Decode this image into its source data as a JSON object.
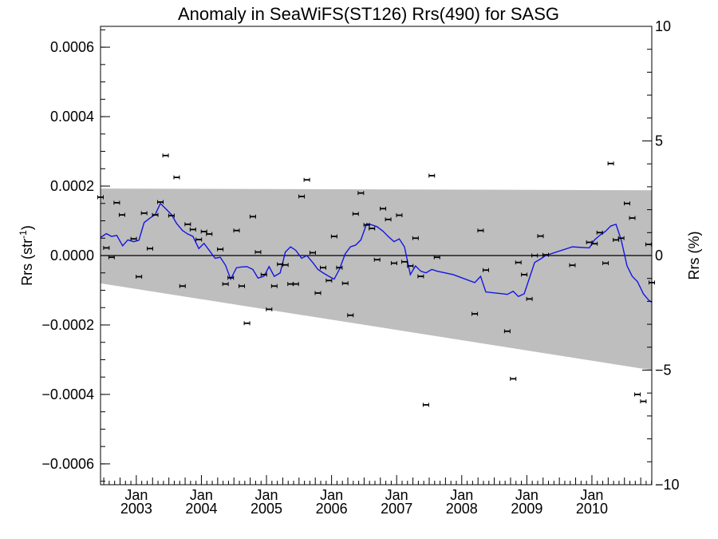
{
  "chart_data": {
    "type": "scatter",
    "title": "Anomaly in SeaWiFS(ST126) Rrs(490) for SASG",
    "ylabel_left": "Rrs (str",
    "ylabel_left_sup": "-1",
    "ylabel_left_end": ")",
    "ylabel_right": "Rrs (%)",
    "xlim": [
      2002.45,
      2010.92
    ],
    "ylim_left": [
      -0.00066,
      0.00066
    ],
    "ylim_right": [
      -10,
      10
    ],
    "y_ticks_left": [
      {
        "value": 0.0006,
        "label": "0.0006"
      },
      {
        "value": 0.0004,
        "label": "0.0004"
      },
      {
        "value": 0.0002,
        "label": "0.0002"
      },
      {
        "value": 0.0,
        "label": "0.0000"
      },
      {
        "value": -0.0002,
        "label": "−0.0002"
      },
      {
        "value": -0.0004,
        "label": "−0.0004"
      },
      {
        "value": -0.0006,
        "label": "−0.0006"
      }
    ],
    "y_ticks_right": [
      {
        "value": 10,
        "label": "10"
      },
      {
        "value": 5,
        "label": "5"
      },
      {
        "value": 0,
        "label": "0"
      },
      {
        "value": -5,
        "label": "−5"
      },
      {
        "value": -10,
        "label": "−10"
      }
    ],
    "x_ticks": [
      {
        "value": 2003,
        "line1": "Jan",
        "line2": "2003"
      },
      {
        "value": 2004,
        "line1": "Jan",
        "line2": "2004"
      },
      {
        "value": 2005,
        "line1": "Jan",
        "line2": "2005"
      },
      {
        "value": 2006,
        "line1": "Jan",
        "line2": "2006"
      },
      {
        "value": 2007,
        "line1": "Jan",
        "line2": "2007"
      },
      {
        "value": 2008,
        "line1": "Jan",
        "line2": "2008"
      },
      {
        "value": 2009,
        "line1": "Jan",
        "line2": "2009"
      },
      {
        "value": 2010,
        "line1": "Jan",
        "line2": "2010"
      }
    ],
    "band": {
      "upper": [
        [
          2002.45,
          0.000193
        ],
        [
          2010.92,
          0.000188
        ]
      ],
      "lower": [
        [
          2002.45,
          -8e-05
        ],
        [
          2010.92,
          -0.00033
        ]
      ],
      "color": "#bebebe"
    },
    "zero_line": true,
    "points": [
      [
        2002.45,
        0.000168
      ],
      [
        2002.54,
        2.2e-05
      ],
      [
        2002.62,
        -5e-06
      ],
      [
        2002.7,
        0.000152
      ],
      [
        2002.78,
        0.000117
      ],
      [
        2002.96,
        4.8e-05
      ],
      [
        2003.04,
        -6.1e-05
      ],
      [
        2003.12,
        0.000122
      ],
      [
        2003.21,
        2e-05
      ],
      [
        2003.29,
        0.000117
      ],
      [
        2003.37,
        0.000154
      ],
      [
        2003.45,
        0.000288
      ],
      [
        2003.54,
        0.000115
      ],
      [
        2003.62,
        0.000225
      ],
      [
        2003.71,
        -8.8e-05
      ],
      [
        2003.79,
        9e-05
      ],
      [
        2003.87,
        7.5e-05
      ],
      [
        2003.96,
        4.6e-05
      ],
      [
        2004.04,
        6.9e-05
      ],
      [
        2004.12,
        6.2e-05
      ],
      [
        2004.29,
        1.8e-05
      ],
      [
        2004.37,
        -8.2e-05
      ],
      [
        2004.45,
        -6.4e-05
      ],
      [
        2004.54,
        7.2e-05
      ],
      [
        2004.62,
        -8.8e-05
      ],
      [
        2004.7,
        -0.000195
      ],
      [
        2004.79,
        0.000112
      ],
      [
        2004.87,
        1e-05
      ],
      [
        2004.96,
        -5.5e-05
      ],
      [
        2005.04,
        -0.000155
      ],
      [
        2005.12,
        -8.8e-05
      ],
      [
        2005.21,
        -2.5e-05
      ],
      [
        2005.29,
        -2.7e-05
      ],
      [
        2005.37,
        -8.2e-05
      ],
      [
        2005.45,
        -8.2e-05
      ],
      [
        2005.54,
        0.00017
      ],
      [
        2005.62,
        0.000218
      ],
      [
        2005.71,
        8e-06
      ],
      [
        2005.79,
        -0.000108
      ],
      [
        2005.87,
        -3.5e-05
      ],
      [
        2005.96,
        -7.2e-05
      ],
      [
        2006.04,
        5.5e-05
      ],
      [
        2006.12,
        -3.5e-05
      ],
      [
        2006.21,
        -8e-05
      ],
      [
        2006.29,
        -0.000172
      ],
      [
        2006.37,
        0.00012
      ],
      [
        2006.45,
        0.00018
      ],
      [
        2006.54,
        8.8e-05
      ],
      [
        2006.62,
        7.8e-05
      ],
      [
        2006.7,
        -1.2e-05
      ],
      [
        2006.79,
        0.000135
      ],
      [
        2006.87,
        0.000104
      ],
      [
        2006.96,
        -2.2e-05
      ],
      [
        2007.04,
        0.000116
      ],
      [
        2007.12,
        -1.8e-05
      ],
      [
        2007.21,
        -3e-05
      ],
      [
        2007.29,
        5e-05
      ],
      [
        2007.37,
        -6e-05
      ],
      [
        2007.45,
        -0.00043
      ],
      [
        2007.54,
        0.00023
      ],
      [
        2007.62,
        -5e-06
      ],
      [
        2008.2,
        -0.000168
      ],
      [
        2008.29,
        7.2e-05
      ],
      [
        2008.37,
        -4.2e-05
      ],
      [
        2008.7,
        -0.000218
      ],
      [
        2008.79,
        -0.000355
      ],
      [
        2008.87,
        -2e-05
      ],
      [
        2008.96,
        -5.5e-05
      ],
      [
        2009.04,
        -0.000125
      ],
      [
        2009.12,
        0.0
      ],
      [
        2009.21,
        5.6e-05
      ],
      [
        2009.29,
        2e-06
      ],
      [
        2009.7,
        -2.8e-05
      ],
      [
        2009.96,
        3.8e-05
      ],
      [
        2010.04,
        3.4e-05
      ],
      [
        2010.12,
        6.6e-05
      ],
      [
        2010.21,
        -2.2e-05
      ],
      [
        2010.29,
        0.000265
      ],
      [
        2010.37,
        4.5e-05
      ],
      [
        2010.45,
        5e-05
      ],
      [
        2010.54,
        0.00015
      ],
      [
        2010.62,
        0.000108
      ],
      [
        2010.7,
        -0.0004
      ],
      [
        2010.79,
        -0.00042
      ],
      [
        2010.87,
        3.2e-05
      ],
      [
        2010.92,
        -7.8e-05
      ]
    ],
    "smooth_line": {
      "color": "#1414e6",
      "points": [
        [
          2002.45,
          5.2e-05
        ],
        [
          2002.54,
          6.3e-05
        ],
        [
          2002.62,
          5.5e-05
        ],
        [
          2002.7,
          5.8e-05
        ],
        [
          2002.79,
          2.8e-05
        ],
        [
          2002.87,
          4.5e-05
        ],
        [
          2002.96,
          4e-05
        ],
        [
          2003.04,
          4.4e-05
        ],
        [
          2003.12,
          9.5e-05
        ],
        [
          2003.21,
          0.000108
        ],
        [
          2003.29,
          0.000118
        ],
        [
          2003.37,
          0.00015
        ],
        [
          2003.45,
          0.000135
        ],
        [
          2003.54,
          0.000118
        ],
        [
          2003.62,
          9.2e-05
        ],
        [
          2003.71,
          7.2e-05
        ],
        [
          2003.79,
          6.2e-05
        ],
        [
          2003.87,
          5.5e-05
        ],
        [
          2003.96,
          2e-05
        ],
        [
          2004.04,
          3.5e-05
        ],
        [
          2004.12,
          1.5e-05
        ],
        [
          2004.21,
          -8e-06
        ],
        [
          2004.29,
          -5e-06
        ],
        [
          2004.37,
          -2.8e-05
        ],
        [
          2004.45,
          -6.8e-05
        ],
        [
          2004.54,
          -3.5e-05
        ],
        [
          2004.62,
          -3.3e-05
        ],
        [
          2004.7,
          -3.2e-05
        ],
        [
          2004.79,
          -4e-05
        ],
        [
          2004.87,
          -6.5e-05
        ],
        [
          2004.96,
          -6e-05
        ],
        [
          2005.04,
          -3.2e-05
        ],
        [
          2005.12,
          -6e-05
        ],
        [
          2005.21,
          -5e-05
        ],
        [
          2005.29,
          1e-05
        ],
        [
          2005.37,
          2.5e-05
        ],
        [
          2005.45,
          1.5e-05
        ],
        [
          2005.54,
          -8e-06
        ],
        [
          2005.62,
          0.0
        ],
        [
          2005.71,
          -2e-05
        ],
        [
          2005.79,
          -4e-05
        ],
        [
          2005.87,
          -5e-05
        ],
        [
          2005.96,
          -6e-05
        ],
        [
          2006.04,
          -6.8e-05
        ],
        [
          2006.12,
          -4e-05
        ],
        [
          2006.21,
          5e-06
        ],
        [
          2006.29,
          2.5e-05
        ],
        [
          2006.37,
          3e-05
        ],
        [
          2006.45,
          4.5e-05
        ],
        [
          2006.54,
          9.2e-05
        ],
        [
          2006.62,
          8.8e-05
        ],
        [
          2006.7,
          8.3e-05
        ],
        [
          2006.79,
          7e-05
        ],
        [
          2006.87,
          5.5e-05
        ],
        [
          2006.96,
          4e-05
        ],
        [
          2007.04,
          4.8e-05
        ],
        [
          2007.12,
          2.5e-05
        ],
        [
          2007.21,
          -5.5e-05
        ],
        [
          2007.29,
          -3e-05
        ],
        [
          2007.37,
          -4.5e-05
        ],
        [
          2007.45,
          -5e-05
        ],
        [
          2007.54,
          -4e-05
        ],
        [
          2007.62,
          -4.5e-05
        ],
        [
          2007.87,
          -5.5e-05
        ],
        [
          2008.2,
          -7.8e-05
        ],
        [
          2008.29,
          -6e-05
        ],
        [
          2008.37,
          -0.000105
        ],
        [
          2008.62,
          -0.00011
        ],
        [
          2008.7,
          -0.000112
        ],
        [
          2008.79,
          -0.000103
        ],
        [
          2008.87,
          -0.000118
        ],
        [
          2008.96,
          -0.00011
        ],
        [
          2009.04,
          -6.5e-05
        ],
        [
          2009.12,
          -2e-05
        ],
        [
          2009.21,
          -1e-05
        ],
        [
          2009.29,
          0.0
        ],
        [
          2009.7,
          2.5e-05
        ],
        [
          2009.96,
          2.2e-05
        ],
        [
          2010.04,
          4.5e-05
        ],
        [
          2010.12,
          5.8e-05
        ],
        [
          2010.21,
          7e-05
        ],
        [
          2010.29,
          8.5e-05
        ],
        [
          2010.37,
          9e-05
        ],
        [
          2010.45,
          4.5e-05
        ],
        [
          2010.54,
          -3e-05
        ],
        [
          2010.62,
          -6e-05
        ],
        [
          2010.7,
          -7.5e-05
        ],
        [
          2010.79,
          -0.00011
        ],
        [
          2010.87,
          -0.000128
        ],
        [
          2010.92,
          -0.000135
        ]
      ]
    }
  }
}
